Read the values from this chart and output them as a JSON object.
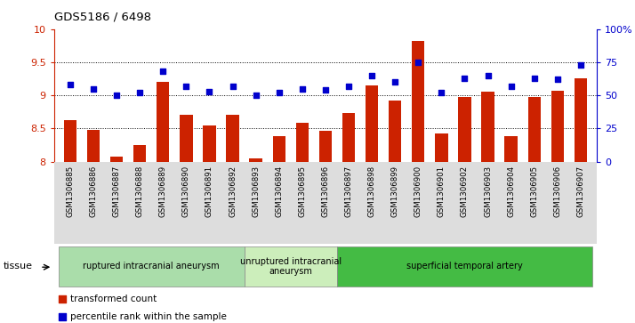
{
  "title": "GDS5186 / 6498",
  "samples": [
    "GSM1306885",
    "GSM1306886",
    "GSM1306887",
    "GSM1306888",
    "GSM1306889",
    "GSM1306890",
    "GSM1306891",
    "GSM1306892",
    "GSM1306893",
    "GSM1306894",
    "GSM1306895",
    "GSM1306896",
    "GSM1306897",
    "GSM1306898",
    "GSM1306899",
    "GSM1306900",
    "GSM1306901",
    "GSM1306902",
    "GSM1306903",
    "GSM1306904",
    "GSM1306905",
    "GSM1306906",
    "GSM1306907"
  ],
  "bar_values": [
    8.62,
    8.48,
    8.08,
    8.25,
    9.2,
    8.7,
    8.55,
    8.7,
    8.05,
    8.38,
    8.58,
    8.47,
    8.73,
    9.15,
    8.92,
    9.82,
    8.42,
    8.97,
    9.05,
    8.38,
    8.97,
    9.07,
    9.25
  ],
  "dot_values": [
    58,
    55,
    50,
    52,
    68,
    57,
    53,
    57,
    50,
    52,
    55,
    54,
    57,
    65,
    60,
    75,
    52,
    63,
    65,
    57,
    63,
    62,
    73
  ],
  "bar_color": "#cc2200",
  "dot_color": "#0000cc",
  "ylim_left": [
    8.0,
    10.0
  ],
  "ylim_right": [
    0,
    100
  ],
  "yticks_left": [
    8.0,
    8.5,
    9.0,
    9.5,
    10.0
  ],
  "ytick_labels_left": [
    "8",
    "8.5",
    "9",
    "9.5",
    "10"
  ],
  "yticks_right": [
    0,
    25,
    50,
    75,
    100
  ],
  "ytick_labels_right": [
    "0",
    "25",
    "50",
    "75",
    "100%"
  ],
  "grid_values": [
    8.5,
    9.0,
    9.5
  ],
  "group_data": [
    {
      "label": "ruptured intracranial aneurysm",
      "start": 0,
      "end": 8,
      "color": "#aaddaa"
    },
    {
      "label": "unruptured intracranial\naneurysm",
      "start": 8,
      "end": 12,
      "color": "#cceebb"
    },
    {
      "label": "superficial temporal artery",
      "start": 12,
      "end": 23,
      "color": "#44bb44"
    }
  ],
  "tissue_label": "tissue",
  "legend_items": [
    {
      "color": "#cc2200",
      "label": "transformed count"
    },
    {
      "color": "#0000cc",
      "label": "percentile rank within the sample"
    }
  ]
}
